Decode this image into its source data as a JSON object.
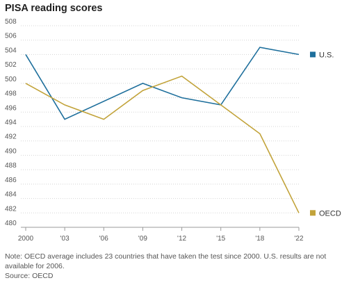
{
  "chart_data": {
    "type": "line",
    "title": "PISA reading scores",
    "x": [
      "2000",
      "'03",
      "'06",
      "'09",
      "'12",
      "'15",
      "'18",
      "'22"
    ],
    "series": [
      {
        "name": "U.S.",
        "color": "#1e6f9c",
        "values": [
          504,
          495,
          null,
          500,
          498,
          497,
          505,
          504
        ]
      },
      {
        "name": "OECD",
        "color": "#c2a33a",
        "values": [
          500,
          497,
          495,
          499,
          501,
          497,
          493,
          482
        ]
      }
    ],
    "yticks": [
      480,
      482,
      484,
      486,
      488,
      490,
      492,
      494,
      496,
      498,
      500,
      502,
      504,
      506,
      508
    ],
    "ylim": [
      480,
      508
    ],
    "grid": true,
    "legend": "right",
    "note": "Note: OECD average includes 23 countries that have taken the test since 2000. U.S. results are not available for 2006.",
    "source": "Source: OECD"
  }
}
